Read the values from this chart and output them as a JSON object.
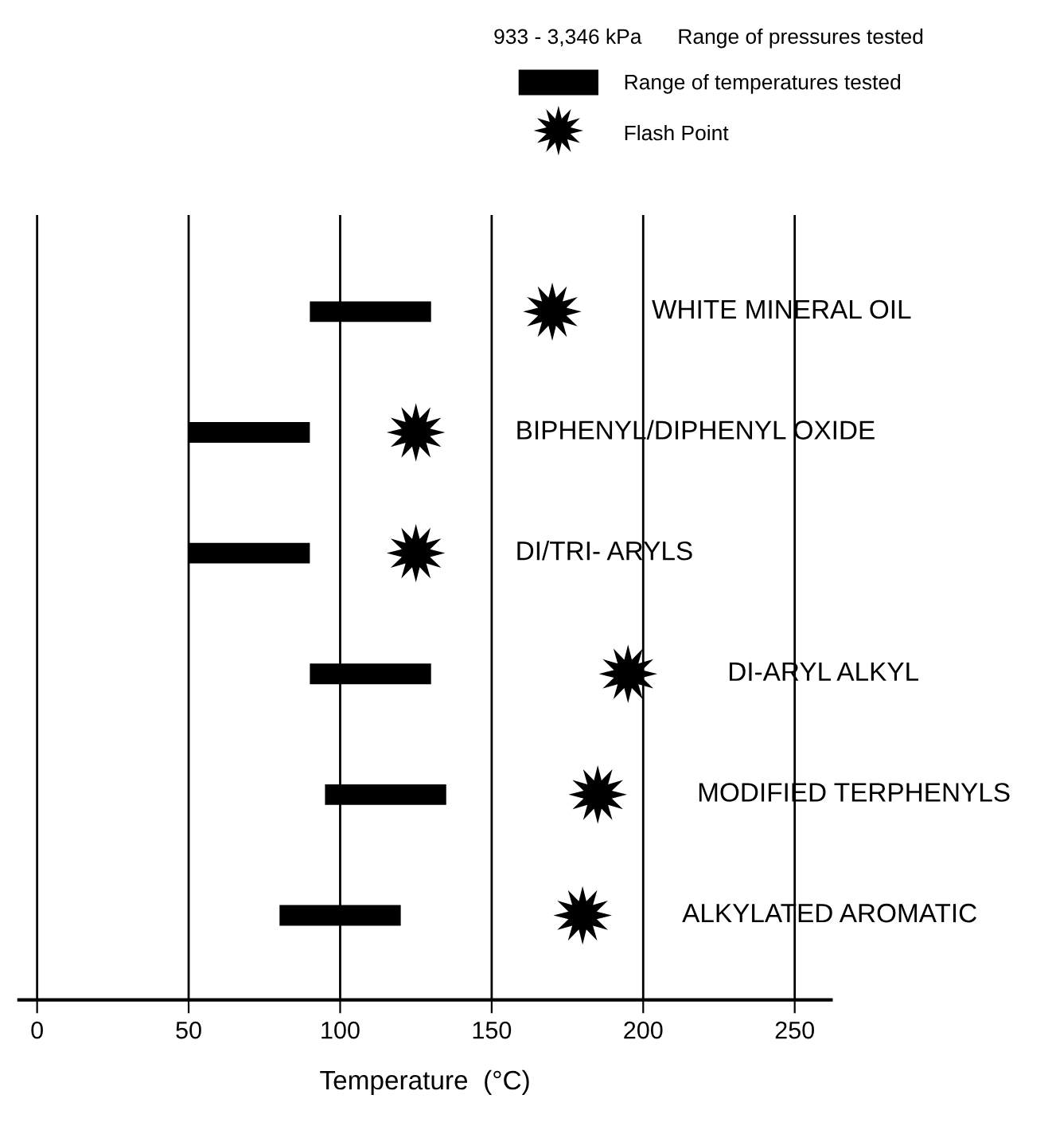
{
  "chart_data": {
    "type": "bar",
    "orientation": "horizontal",
    "xlabel": "Temperature  (°C)",
    "categories": [
      "WHITE MINERAL OIL",
      "BIPHENYL/DIPHENYL OXIDE",
      "DI/TRI- ARYLS",
      "DI-ARYL ALKYL",
      "MODIFIED TERPHENYLS",
      "ALKYLATED AROMATIC"
    ],
    "series": [
      {
        "name": "Range of temperatures tested",
        "color": "#000000",
        "base": [
          90,
          50,
          50,
          90,
          95,
          80
        ],
        "values": [
          40,
          40,
          40,
          40,
          40,
          40
        ]
      },
      {
        "name": "Flash Point",
        "type": "scatter",
        "marker": "star",
        "color": "#000000",
        "values": [
          170,
          125,
          125,
          195,
          185,
          180
        ]
      }
    ],
    "xlim": [
      -6,
      262
    ],
    "xticks": [
      0,
      50,
      100,
      150,
      200,
      250
    ],
    "grid": "x",
    "tick_labels": "x",
    "legend": "top right",
    "annotations": [
      "933 - 3,346 kPa",
      "Range of pressures tested"
    ]
  }
}
